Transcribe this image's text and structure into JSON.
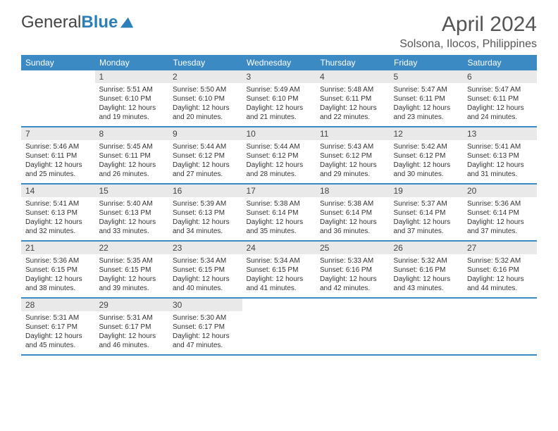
{
  "colors": {
    "header_bg": "#3b8ac4",
    "header_text": "#ffffff",
    "daynum_bg": "#e9e9e9",
    "rule": "#3b8ac4",
    "logo_blue": "#2c7fb8",
    "text": "#333333"
  },
  "logo": {
    "word1": "General",
    "word2": "Blue"
  },
  "title": "April 2024",
  "location": "Solsona, Ilocos, Philippines",
  "day_headers": [
    "Sunday",
    "Monday",
    "Tuesday",
    "Wednesday",
    "Thursday",
    "Friday",
    "Saturday"
  ],
  "weeks": [
    [
      null,
      {
        "n": "1",
        "sr": "5:51 AM",
        "ss": "6:10 PM",
        "dl1": "12 hours",
        "dl2": "and 19 minutes."
      },
      {
        "n": "2",
        "sr": "5:50 AM",
        "ss": "6:10 PM",
        "dl1": "12 hours",
        "dl2": "and 20 minutes."
      },
      {
        "n": "3",
        "sr": "5:49 AM",
        "ss": "6:10 PM",
        "dl1": "12 hours",
        "dl2": "and 21 minutes."
      },
      {
        "n": "4",
        "sr": "5:48 AM",
        "ss": "6:11 PM",
        "dl1": "12 hours",
        "dl2": "and 22 minutes."
      },
      {
        "n": "5",
        "sr": "5:47 AM",
        "ss": "6:11 PM",
        "dl1": "12 hours",
        "dl2": "and 23 minutes."
      },
      {
        "n": "6",
        "sr": "5:47 AM",
        "ss": "6:11 PM",
        "dl1": "12 hours",
        "dl2": "and 24 minutes."
      }
    ],
    [
      {
        "n": "7",
        "sr": "5:46 AM",
        "ss": "6:11 PM",
        "dl1": "12 hours",
        "dl2": "and 25 minutes."
      },
      {
        "n": "8",
        "sr": "5:45 AM",
        "ss": "6:11 PM",
        "dl1": "12 hours",
        "dl2": "and 26 minutes."
      },
      {
        "n": "9",
        "sr": "5:44 AM",
        "ss": "6:12 PM",
        "dl1": "12 hours",
        "dl2": "and 27 minutes."
      },
      {
        "n": "10",
        "sr": "5:44 AM",
        "ss": "6:12 PM",
        "dl1": "12 hours",
        "dl2": "and 28 minutes."
      },
      {
        "n": "11",
        "sr": "5:43 AM",
        "ss": "6:12 PM",
        "dl1": "12 hours",
        "dl2": "and 29 minutes."
      },
      {
        "n": "12",
        "sr": "5:42 AM",
        "ss": "6:12 PM",
        "dl1": "12 hours",
        "dl2": "and 30 minutes."
      },
      {
        "n": "13",
        "sr": "5:41 AM",
        "ss": "6:13 PM",
        "dl1": "12 hours",
        "dl2": "and 31 minutes."
      }
    ],
    [
      {
        "n": "14",
        "sr": "5:41 AM",
        "ss": "6:13 PM",
        "dl1": "12 hours",
        "dl2": "and 32 minutes."
      },
      {
        "n": "15",
        "sr": "5:40 AM",
        "ss": "6:13 PM",
        "dl1": "12 hours",
        "dl2": "and 33 minutes."
      },
      {
        "n": "16",
        "sr": "5:39 AM",
        "ss": "6:13 PM",
        "dl1": "12 hours",
        "dl2": "and 34 minutes."
      },
      {
        "n": "17",
        "sr": "5:38 AM",
        "ss": "6:14 PM",
        "dl1": "12 hours",
        "dl2": "and 35 minutes."
      },
      {
        "n": "18",
        "sr": "5:38 AM",
        "ss": "6:14 PM",
        "dl1": "12 hours",
        "dl2": "and 36 minutes."
      },
      {
        "n": "19",
        "sr": "5:37 AM",
        "ss": "6:14 PM",
        "dl1": "12 hours",
        "dl2": "and 37 minutes."
      },
      {
        "n": "20",
        "sr": "5:36 AM",
        "ss": "6:14 PM",
        "dl1": "12 hours",
        "dl2": "and 37 minutes."
      }
    ],
    [
      {
        "n": "21",
        "sr": "5:36 AM",
        "ss": "6:15 PM",
        "dl1": "12 hours",
        "dl2": "and 38 minutes."
      },
      {
        "n": "22",
        "sr": "5:35 AM",
        "ss": "6:15 PM",
        "dl1": "12 hours",
        "dl2": "and 39 minutes."
      },
      {
        "n": "23",
        "sr": "5:34 AM",
        "ss": "6:15 PM",
        "dl1": "12 hours",
        "dl2": "and 40 minutes."
      },
      {
        "n": "24",
        "sr": "5:34 AM",
        "ss": "6:15 PM",
        "dl1": "12 hours",
        "dl2": "and 41 minutes."
      },
      {
        "n": "25",
        "sr": "5:33 AM",
        "ss": "6:16 PM",
        "dl1": "12 hours",
        "dl2": "and 42 minutes."
      },
      {
        "n": "26",
        "sr": "5:32 AM",
        "ss": "6:16 PM",
        "dl1": "12 hours",
        "dl2": "and 43 minutes."
      },
      {
        "n": "27",
        "sr": "5:32 AM",
        "ss": "6:16 PM",
        "dl1": "12 hours",
        "dl2": "and 44 minutes."
      }
    ],
    [
      {
        "n": "28",
        "sr": "5:31 AM",
        "ss": "6:17 PM",
        "dl1": "12 hours",
        "dl2": "and 45 minutes."
      },
      {
        "n": "29",
        "sr": "5:31 AM",
        "ss": "6:17 PM",
        "dl1": "12 hours",
        "dl2": "and 46 minutes."
      },
      {
        "n": "30",
        "sr": "5:30 AM",
        "ss": "6:17 PM",
        "dl1": "12 hours",
        "dl2": "and 47 minutes."
      },
      null,
      null,
      null,
      null
    ]
  ],
  "labels": {
    "sunrise": "Sunrise:",
    "sunset": "Sunset:",
    "daylight": "Daylight:"
  }
}
